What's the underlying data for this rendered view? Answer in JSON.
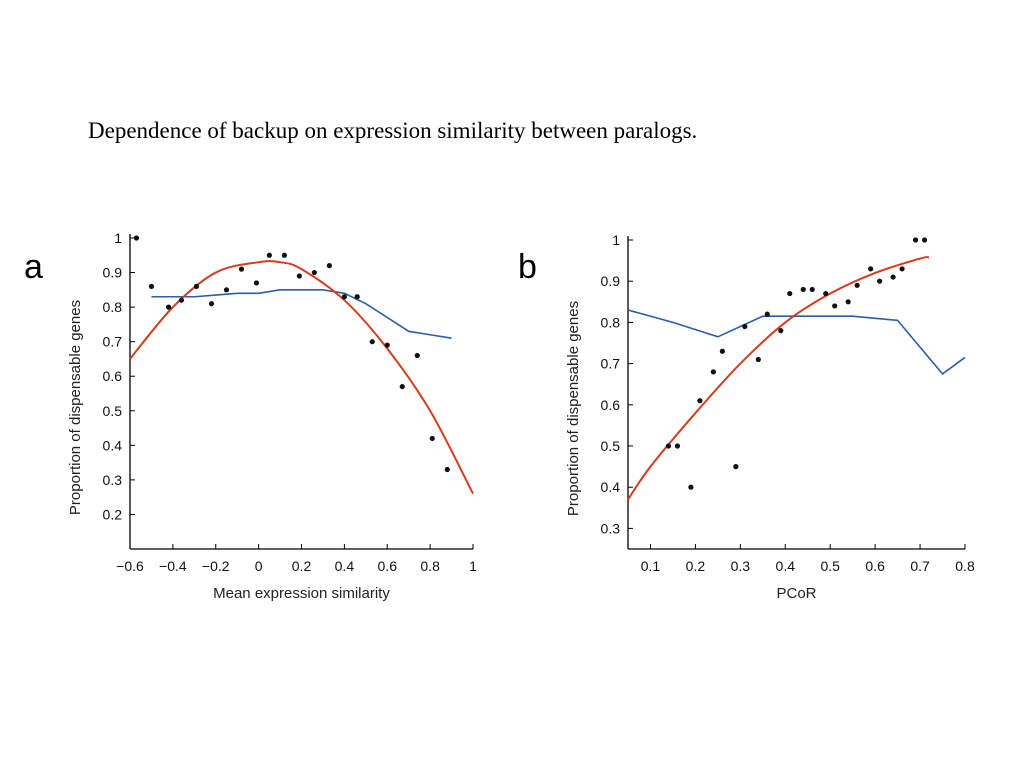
{
  "title": "Dependence of backup on expression similarity between paralogs.",
  "colors": {
    "fit_curve": "#d63c1e",
    "window_average": "#2a5ea8",
    "points": "#111111",
    "axis": "#000000"
  },
  "chart_data": [
    {
      "panel": "a",
      "type": "scatter",
      "xlabel": "Mean expression similarity",
      "ylabel": "Proportion of dispensable genes",
      "xlim": [
        -0.6,
        1.0
      ],
      "ylim": [
        0.1,
        1.0
      ],
      "xticks": [
        -0.6,
        -0.4,
        -0.2,
        0,
        0.2,
        0.4,
        0.6,
        0.8,
        1
      ],
      "xtick_labels": [
        "−0.6",
        "−0.4",
        "−0.2",
        "0",
        "0.2",
        "0.4",
        "0.6",
        "0.8",
        "1"
      ],
      "yticks": [
        0.2,
        0.3,
        0.4,
        0.5,
        0.6,
        0.7,
        0.8,
        0.9,
        1
      ],
      "ytick_labels": [
        "0.2",
        "0.3",
        "0.4",
        "0.5",
        "0.6",
        "0.7",
        "0.8",
        "0.9",
        "1"
      ],
      "grid": false,
      "points": {
        "x": [
          -0.57,
          -0.5,
          -0.42,
          -0.36,
          -0.29,
          -0.22,
          -0.15,
          -0.08,
          -0.01,
          0.05,
          0.12,
          0.19,
          0.26,
          0.33,
          0.4,
          0.46,
          0.53,
          0.6,
          0.67,
          0.74,
          0.81,
          0.88
        ],
        "y": [
          1.0,
          0.86,
          0.8,
          0.82,
          0.86,
          0.81,
          0.85,
          0.91,
          0.87,
          0.95,
          0.95,
          0.89,
          0.9,
          0.92,
          0.83,
          0.83,
          0.7,
          0.69,
          0.57,
          0.66,
          0.42,
          0.33
        ]
      },
      "fit_curve": {
        "x": [
          -0.6,
          -0.4,
          -0.2,
          0.0,
          0.1,
          0.2,
          0.4,
          0.6,
          0.8,
          1.0
        ],
        "y": [
          0.65,
          0.8,
          0.9,
          0.93,
          0.93,
          0.91,
          0.82,
          0.68,
          0.5,
          0.26
        ]
      },
      "window_average": {
        "x": [
          -0.5,
          -0.4,
          -0.3,
          -0.2,
          -0.1,
          0.0,
          0.1,
          0.2,
          0.3,
          0.4,
          0.5,
          0.6,
          0.7,
          0.8,
          0.9
        ],
        "y": [
          0.83,
          0.83,
          0.83,
          0.835,
          0.84,
          0.84,
          0.85,
          0.85,
          0.85,
          0.84,
          0.81,
          0.77,
          0.73,
          0.72,
          0.71
        ]
      }
    },
    {
      "panel": "b",
      "type": "scatter",
      "xlabel": "PCoR",
      "ylabel": "Proportion of dispensable genes",
      "xlim": [
        0.05,
        0.8
      ],
      "ylim": [
        0.25,
        1.0
      ],
      "xticks": [
        0.1,
        0.2,
        0.3,
        0.4,
        0.5,
        0.6,
        0.7,
        0.8
      ],
      "xtick_labels": [
        "0.1",
        "0.2",
        "0.3",
        "0.4",
        "0.5",
        "0.6",
        "0.7",
        "0.8"
      ],
      "yticks": [
        0.3,
        0.4,
        0.5,
        0.6,
        0.7,
        0.8,
        0.9,
        1
      ],
      "ytick_labels": [
        "0.3",
        "0.4",
        "0.5",
        "0.6",
        "0.7",
        "0.8",
        "0.9",
        "1"
      ],
      "grid": false,
      "points": {
        "x": [
          0.14,
          0.16,
          0.19,
          0.21,
          0.24,
          0.26,
          0.29,
          0.31,
          0.34,
          0.36,
          0.39,
          0.41,
          0.44,
          0.46,
          0.49,
          0.51,
          0.54,
          0.56,
          0.59,
          0.61,
          0.64,
          0.66,
          0.69,
          0.71
        ],
        "y": [
          0.5,
          0.5,
          0.4,
          0.61,
          0.68,
          0.73,
          0.45,
          0.79,
          0.71,
          0.82,
          0.78,
          0.87,
          0.88,
          0.88,
          0.87,
          0.84,
          0.85,
          0.89,
          0.93,
          0.9,
          0.91,
          0.93,
          1.0,
          1.0
        ]
      },
      "fit_curve": {
        "x": [
          0.05,
          0.1,
          0.2,
          0.3,
          0.4,
          0.5,
          0.6,
          0.7,
          0.72
        ],
        "y": [
          0.37,
          0.45,
          0.58,
          0.7,
          0.8,
          0.87,
          0.92,
          0.955,
          0.958
        ]
      },
      "window_average": {
        "x": [
          0.05,
          0.15,
          0.25,
          0.35,
          0.45,
          0.55,
          0.65,
          0.75,
          0.8
        ],
        "y": [
          0.83,
          0.8,
          0.765,
          0.815,
          0.815,
          0.815,
          0.805,
          0.675,
          0.715
        ]
      }
    }
  ]
}
